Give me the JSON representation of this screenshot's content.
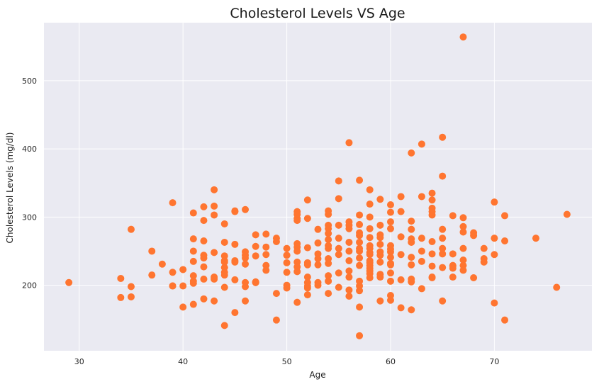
{
  "chart_data": {
    "type": "scatter",
    "title": "Cholesterol Levels VS Age",
    "xlabel": "Age",
    "ylabel": "Cholesterol Levels (mg/dl)",
    "xlim": [
      26.6,
      79.4
    ],
    "ylim": [
      104,
      585
    ],
    "xticks": [
      30,
      40,
      50,
      60,
      70
    ],
    "yticks": [
      200,
      300,
      400,
      500
    ],
    "grid": true,
    "legend": "none",
    "point_color": "#ff7530",
    "plot_background": "#eaeaf2",
    "grid_color": "#ffffff",
    "series": [
      {
        "x": [
          29,
          34,
          34,
          35,
          35,
          35,
          37,
          37,
          38,
          39,
          39,
          39,
          39,
          40,
          40,
          40,
          41,
          41,
          41,
          41,
          41,
          41,
          41,
          41,
          42,
          42,
          42,
          42,
          42,
          42,
          42,
          42,
          43,
          43,
          43,
          43,
          43,
          43,
          43,
          44,
          44,
          44,
          44,
          44,
          44,
          44,
          44,
          44,
          44,
          45,
          45,
          45,
          45,
          45,
          45,
          45,
          46,
          46,
          46,
          46,
          46,
          46,
          46,
          46,
          47,
          47,
          47,
          47,
          47,
          47,
          48,
          48,
          48,
          48,
          48,
          49,
          49,
          49,
          49,
          50,
          50,
          50,
          50,
          50,
          50,
          50,
          51,
          51,
          51,
          51,
          51,
          51,
          51,
          51,
          51,
          51,
          51,
          52,
          52,
          52,
          52,
          52,
          52,
          52,
          52,
          52,
          52,
          53,
          53,
          53,
          53,
          53,
          53,
          53,
          54,
          54,
          54,
          54,
          54,
          54,
          54,
          54,
          54,
          54,
          54,
          54,
          54,
          55,
          55,
          55,
          55,
          55,
          55,
          55,
          55,
          56,
          56,
          56,
          56,
          56,
          56,
          56,
          56,
          56,
          56,
          56,
          57,
          57,
          57,
          57,
          57,
          57,
          57,
          57,
          57,
          57,
          57,
          57,
          57,
          57,
          57,
          58,
          58,
          58,
          58,
          58,
          58,
          58,
          58,
          58,
          58,
          58,
          58,
          58,
          58,
          58,
          58,
          59,
          59,
          59,
          59,
          59,
          59,
          59,
          59,
          59,
          59,
          59,
          60,
          60,
          60,
          60,
          60,
          60,
          60,
          60,
          60,
          60,
          60,
          60,
          60,
          60,
          61,
          61,
          61,
          61,
          61,
          61,
          62,
          62,
          62,
          62,
          62,
          62,
          62,
          62,
          62,
          62,
          63,
          63,
          63,
          63,
          63,
          63,
          64,
          64,
          64,
          64,
          64,
          64,
          64,
          64,
          64,
          64,
          65,
          65,
          65,
          65,
          65,
          65,
          65,
          65,
          66,
          66,
          66,
          66,
          66,
          66,
          67,
          67,
          67,
          67,
          67,
          67,
          67,
          67,
          68,
          68,
          68,
          69,
          69,
          69,
          70,
          70,
          70,
          70,
          71,
          71,
          71,
          74,
          76,
          77
        ],
        "y": [
          204,
          182,
          210,
          198,
          183,
          282,
          250,
          215,
          231,
          321,
          219,
          199,
          199,
          223,
          168,
          199,
          306,
          268,
          250,
          235,
          214,
          206,
          203,
          172,
          315,
          295,
          265,
          244,
          240,
          227,
          209,
          180,
          340,
          316,
          303,
          248,
          212,
          209,
          177,
          290,
          263,
          243,
          236,
          234,
          226,
          219,
          215,
          197,
          141,
          309,
          308,
          260,
          236,
          234,
          208,
          160,
          311,
          249,
          244,
          240,
          231,
          204,
          198,
          177,
          274,
          257,
          243,
          205,
          204,
          204,
          275,
          256,
          245,
          229,
          222,
          269,
          264,
          188,
          149,
          254,
          244,
          233,
          219,
          200,
          196,
          244,
          308,
          304,
          298,
          295,
          261,
          256,
          250,
          234,
          227,
          220,
          175,
          325,
          298,
          255,
          233,
          230,
          212,
          204,
          196,
          186,
          199,
          282,
          262,
          246,
          239,
          230,
          204,
          200,
          309,
          304,
          288,
          283,
          276,
          267,
          258,
          254,
          239,
          232,
          214,
          206,
          188,
          353,
          327,
          288,
          269,
          254,
          245,
          218,
          197,
          409,
          293,
          288,
          283,
          263,
          250,
          236,
          221,
          212,
          193,
          184,
          354,
          303,
          289,
          277,
          273,
          263,
          254,
          250,
          240,
          229,
          206,
          199,
          192,
          168,
          126,
          340,
          319,
          300,
          283,
          270,
          258,
          254,
          248,
          245,
          236,
          233,
          229,
          225,
          221,
          217,
          211,
          326,
          288,
          274,
          270,
          260,
          249,
          244,
          234,
          216,
          212,
          177,
          318,
          307,
          293,
          283,
          258,
          253,
          249,
          241,
          232,
          230,
          218,
          206,
          185,
          178,
          330,
          308,
          271,
          245,
          208,
          167,
          394,
          294,
          282,
          268,
          263,
          241,
          230,
          209,
          205,
          164,
          407,
          330,
          269,
          250,
          235,
          195,
          335,
          325,
          313,
          308,
          303,
          264,
          246,
          228,
          212,
          211,
          417,
          360,
          282,
          269,
          254,
          246,
          226,
          177,
          302,
          246,
          229,
          228,
          225,
          212,
          564,
          299,
          286,
          278,
          254,
          237,
          229,
          222,
          277,
          273,
          211,
          254,
          239,
          234,
          322,
          269,
          245,
          174,
          302,
          265,
          149,
          269,
          197,
          304
        ]
      }
    ]
  }
}
